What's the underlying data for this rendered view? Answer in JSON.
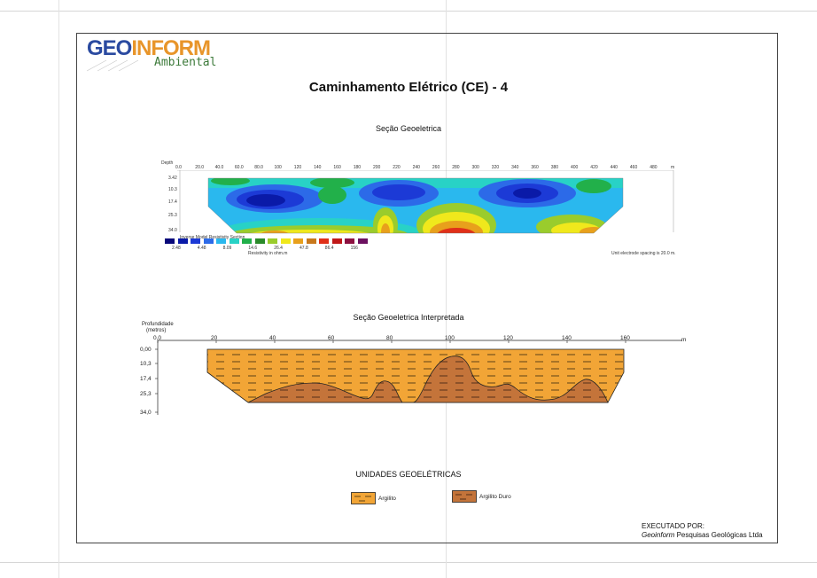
{
  "logo": {
    "main_a": "GEO",
    "main_b": "INFORM",
    "sub": "Ambiental"
  },
  "title": "Caminhamento Elétrico (CE)  - 4",
  "section1": {
    "title": "Seção Geoeletrica",
    "depth_label": "Depth",
    "x_ticks": [
      "0.0",
      "20.0",
      "40.0",
      "60.0",
      "80.0",
      "100",
      "120",
      "140",
      "160",
      "180",
      "200",
      "220",
      "240",
      "260",
      "280",
      "300",
      "320",
      "340",
      "360",
      "380",
      "400",
      "420",
      "440",
      "460",
      "480"
    ],
    "x_unit": "m",
    "depths": [
      "3.42",
      "10.3",
      "17.4",
      "25.3",
      "34.0"
    ],
    "scale_title": "Inverse Model Resistivity Section",
    "scale_values": [
      "2.48",
      "4.48",
      "8.09",
      "14.6",
      "26.4",
      "47.8",
      "86.4",
      "156"
    ],
    "scale_unit": "Resistivity in ohm.m",
    "spacing_note": "Unit electrode spacing is 20.0 m.",
    "scale_colors": [
      "#08087a",
      "#0a1aa8",
      "#1c3ad6",
      "#2c6ae8",
      "#2ab8ee",
      "#28d2c6",
      "#22b04a",
      "#2a8a2a",
      "#9acc2c",
      "#f0e81c",
      "#e8a01c",
      "#c8781c",
      "#e03018",
      "#c01818",
      "#8c1040",
      "#6c1060"
    ]
  },
  "section2": {
    "title": "Seção Geoeletrica Interpretada",
    "depth_label_1": "Profundidade",
    "depth_label_2": "(metros)",
    "x_ticks": [
      "0,0",
      "20",
      "40",
      "60",
      "80",
      "100",
      "120",
      "140",
      "160"
    ],
    "x_unit": "m",
    "depths": [
      "0,00",
      "10,3",
      "17,4",
      "25,3",
      "34,0"
    ]
  },
  "legend": {
    "title": "UNIDADES GEOELÉTRICAS",
    "items": [
      {
        "label": "Argilito",
        "color": "#f2a536"
      },
      {
        "label": "Argilito Duro",
        "color": "#c4743a"
      }
    ]
  },
  "footer": {
    "line1": "EXECUTADO POR:",
    "org": "Geoinform",
    "org_rest": " Pesquisas Geológicas Ltda"
  }
}
